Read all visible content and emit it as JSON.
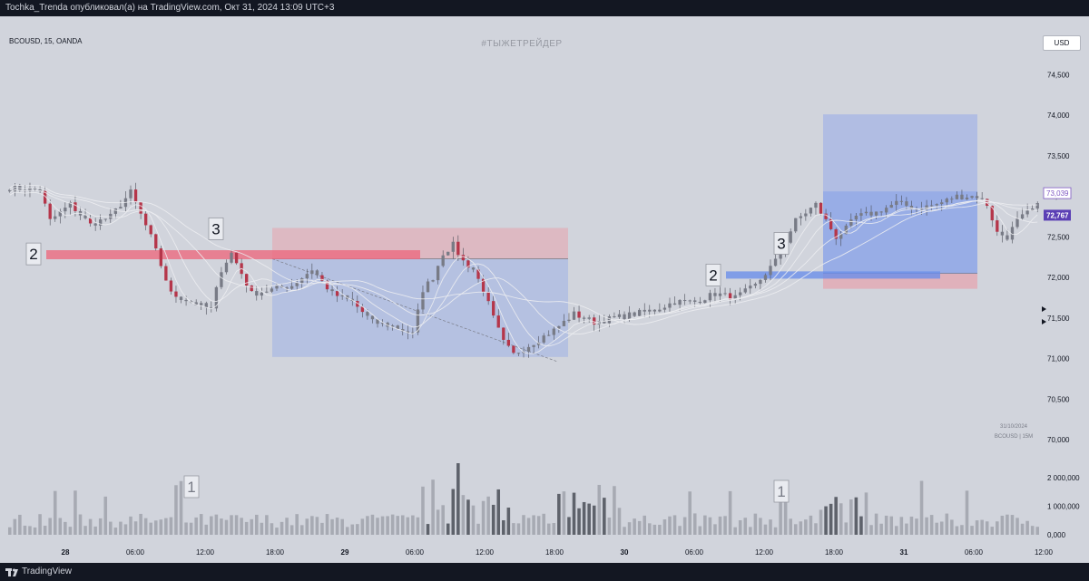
{
  "header": {
    "text": "Tochka_Trenda опубликовал(а) на TradingView.com, Окт 31, 2024 13:09 UTC+3"
  },
  "chart_info": {
    "symbol": "BCOUSD, 15, OANDA",
    "watermark": "#ТЫЖЕТРЕЙДЕР",
    "currency": "USD",
    "snapshot_date": "31/10/2024",
    "snapshot_symbol": "BCOUSD | 15M"
  },
  "footer": {
    "brand": "TradingView"
  },
  "chart_data": {
    "type": "candlestick",
    "price_axis": {
      "ylim": [
        69700,
        74950
      ],
      "ticks": [
        70000,
        70500,
        71000,
        71500,
        72000,
        72500,
        73000,
        73500,
        74000,
        74500
      ],
      "tick_labels": [
        "70,000",
        "70,500",
        "71,000",
        "71,500",
        "72,000",
        "72,500",
        "73,000",
        "73,500",
        "74,000",
        "74,500"
      ]
    },
    "volume_axis": {
      "ylim": [
        0,
        2600000
      ],
      "ticks": [
        0,
        1000000,
        2000000
      ],
      "tick_labels": [
        "0,000",
        "1 000,000",
        "2 000,000"
      ]
    },
    "time_axis": {
      "labels": [
        "28",
        "06:00",
        "12:00",
        "18:00",
        "29",
        "06:00",
        "12:00",
        "18:00",
        "30",
        "06:00",
        "12:00",
        "18:00",
        "31",
        "06:00",
        "12:00"
      ],
      "bold": [
        "28",
        "29",
        "30",
        "31"
      ]
    },
    "price_path": [
      [
        0,
        73100
      ],
      [
        6,
        73080
      ],
      [
        8,
        72700
      ],
      [
        12,
        72900
      ],
      [
        16,
        72650
      ],
      [
        20,
        72750
      ],
      [
        24,
        73050
      ],
      [
        28,
        72500
      ],
      [
        32,
        71800
      ],
      [
        36,
        71700
      ],
      [
        40,
        71600
      ],
      [
        42,
        72100
      ],
      [
        44,
        72300
      ],
      [
        48,
        71800
      ],
      [
        52,
        71850
      ],
      [
        56,
        71900
      ],
      [
        60,
        72100
      ],
      [
        64,
        71800
      ],
      [
        68,
        71700
      ],
      [
        72,
        71450
      ],
      [
        76,
        71400
      ],
      [
        80,
        71300
      ],
      [
        82,
        71850
      ],
      [
        84,
        72000
      ],
      [
        86,
        72300
      ],
      [
        88,
        72400
      ],
      [
        90,
        72200
      ],
      [
        92,
        72100
      ],
      [
        94,
        71850
      ],
      [
        96,
        71500
      ],
      [
        98,
        71200
      ],
      [
        100,
        71050
      ],
      [
        104,
        71200
      ],
      [
        108,
        71350
      ],
      [
        112,
        71550
      ],
      [
        116,
        71450
      ],
      [
        120,
        71500
      ],
      [
        124,
        71550
      ],
      [
        128,
        71600
      ],
      [
        132,
        71700
      ],
      [
        136,
        71700
      ],
      [
        140,
        71800
      ],
      [
        144,
        71750
      ],
      [
        148,
        71900
      ],
      [
        152,
        72200
      ],
      [
        156,
        72700
      ],
      [
        160,
        72900
      ],
      [
        164,
        72500
      ],
      [
        166,
        72600
      ],
      [
        168,
        72750
      ],
      [
        172,
        72800
      ],
      [
        176,
        72920
      ],
      [
        180,
        72850
      ],
      [
        184,
        72900
      ],
      [
        188,
        73000
      ],
      [
        192,
        73000
      ],
      [
        194,
        72900
      ],
      [
        196,
        72550
      ],
      [
        198,
        72500
      ],
      [
        200,
        72700
      ],
      [
        204,
        72880
      ]
    ],
    "last_price": "72,767",
    "alt_price": "73,039",
    "bar_count": 205,
    "volume_shape": "random-heights",
    "annotations": [
      {
        "label": "2",
        "price": 72290
      },
      {
        "label": "3",
        "price": 72600
      },
      {
        "label": "2",
        "price": 72030
      },
      {
        "label": "3",
        "price": 72420
      },
      {
        "label": "1"
      },
      {
        "label": "1"
      }
    ],
    "zones": [
      {
        "kind": "short",
        "price_top": 72610,
        "price_entry": 72230,
        "price_bottom": 71020
      },
      {
        "kind": "long",
        "price_top": 74010,
        "price_entry": 72050,
        "price_bottom": 71860
      },
      {
        "kind": "sr-red",
        "price": 72280
      },
      {
        "kind": "sr-blue",
        "price": 72030
      }
    ],
    "colors": {
      "up": "#787b86",
      "down": "#b5364a",
      "ma": "#ecedf1",
      "short_profit": "#9fb0e6",
      "short_stop": "#e7a3ad",
      "sr_red": "#ec6a80",
      "sr_blue": "#6b8eea"
    }
  }
}
